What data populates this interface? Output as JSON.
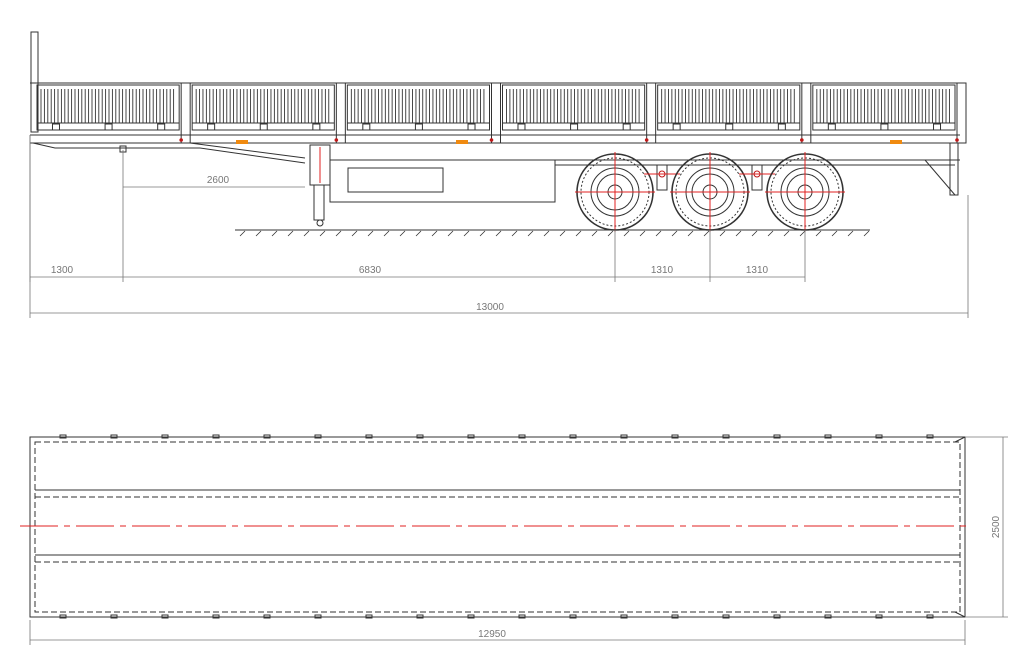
{
  "side_view": {
    "dimensions": {
      "front_overhang": "1300",
      "kingpin_to_leg": "2600",
      "wheelbase": "6830",
      "axle_spacing_1": "1310",
      "axle_spacing_2": "1310",
      "overall_length": "13000"
    },
    "side_panel_count": 6,
    "axle_count": 3
  },
  "top_view": {
    "dimensions": {
      "width": "2500",
      "deck_length": "12950"
    }
  },
  "colors": {
    "line": "#333333",
    "dimension": "#777777",
    "centerline": "#e02020",
    "reflector": "#f08a10",
    "lamp": "#c01818"
  }
}
